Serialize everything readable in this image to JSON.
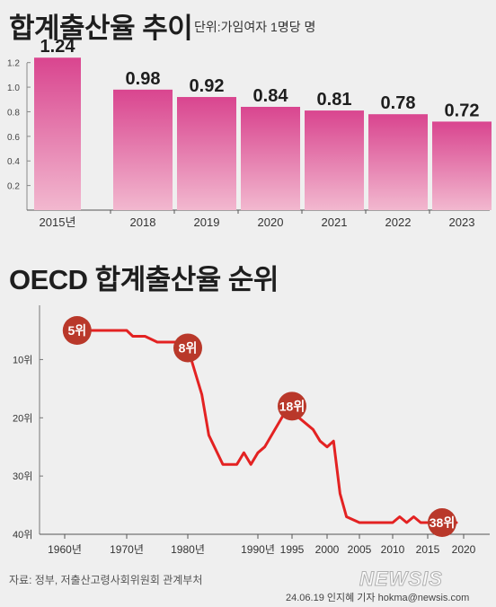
{
  "header": {
    "title": "합계출산율 추이",
    "unit": "단위:가임여자 1명당 명"
  },
  "section2": {
    "title": "OECD 합계출산율 순위"
  },
  "footer": {
    "source": "자료: 정부, 저출산고령사회위원회 관계부처",
    "credit": "24.06.19 인지혜 기자 hokma@newsis.com",
    "logo": "NEWSIS"
  },
  "chart_data": [
    {
      "type": "bar",
      "categories": [
        "2015년",
        "2018",
        "2019",
        "2020",
        "2021",
        "2022",
        "2023"
      ],
      "values": [
        1.24,
        0.98,
        0.92,
        0.84,
        0.81,
        0.78,
        0.72
      ],
      "data_labels": [
        "1.24",
        "0.98",
        "0.92",
        "0.84",
        "0.81",
        "0.78",
        "0.72"
      ],
      "ylim": [
        0,
        1.3
      ],
      "yticks": [
        0.2,
        0.4,
        0.6,
        0.8,
        1.0,
        1.2
      ],
      "ytick_labels": [
        "0.2",
        "0.4",
        "0.6",
        "0.8",
        "1.0",
        "1.2"
      ],
      "bar_color_top": "#d9458f",
      "bar_color_bottom": "#f2b8cf",
      "grid": false
    },
    {
      "type": "line",
      "x": [
        1960,
        1965,
        1969,
        1970,
        1971,
        1973,
        1975,
        1978,
        1980,
        1982,
        1983,
        1985,
        1987,
        1988,
        1989,
        1990,
        1991,
        1992,
        1993,
        1994,
        1995,
        1996,
        1997,
        1998,
        1999,
        2000,
        2001,
        2002,
        2003,
        2005,
        2010,
        2011,
        2012,
        2013,
        2014,
        2015,
        2016,
        2017,
        2018,
        2019
      ],
      "y": [
        5,
        5,
        5,
        5,
        6,
        6,
        7,
        7,
        8,
        16,
        23,
        28,
        28,
        26,
        28,
        26,
        25,
        23,
        21,
        19,
        18,
        20,
        21,
        22,
        24,
        25,
        24,
        33,
        37,
        38,
        38,
        37,
        38,
        37,
        38,
        38,
        38,
        38,
        38,
        38
      ],
      "xlim": [
        1957,
        2020
      ],
      "ylim": [
        40,
        2
      ],
      "inverted_y": true,
      "xticks": [
        1960,
        1970,
        1980,
        1990,
        1995,
        2000,
        2005,
        2010,
        2015,
        2020
      ],
      "xtick_labels": [
        "1960년",
        "1970년",
        "1980년",
        "1990년",
        "1995",
        "2000",
        "2005",
        "2010",
        "2015",
        "2020"
      ],
      "yticks": [
        10,
        20,
        30,
        40
      ],
      "ytick_labels": [
        "10위",
        "20위",
        "30위",
        "40위"
      ],
      "line_color": "#e32222",
      "annotations": [
        {
          "x": 1962,
          "y": 5,
          "label": "5위"
        },
        {
          "x": 1980,
          "y": 8,
          "label": "8위"
        },
        {
          "x": 1995,
          "y": 18,
          "label": "18위"
        },
        {
          "x": 2017,
          "y": 38,
          "label": "38위"
        }
      ],
      "marker_color": "#b9382a"
    }
  ]
}
